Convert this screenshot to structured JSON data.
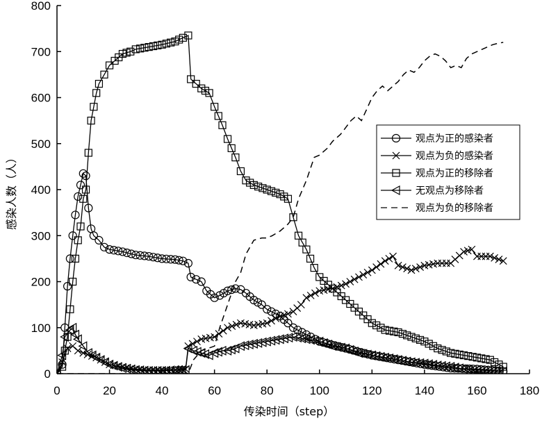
{
  "chart_data": {
    "type": "line",
    "title": "",
    "xlabel": "传染时间（step）",
    "ylabel": "感染人数（人）",
    "xlim": [
      0,
      180
    ],
    "ylim": [
      0,
      800
    ],
    "xticks": [
      "0",
      "20",
      "40",
      "60",
      "80",
      "100",
      "120",
      "140",
      "160",
      "180"
    ],
    "yticks": [
      "0",
      "100",
      "200",
      "300",
      "400",
      "500",
      "600",
      "700",
      "800"
    ],
    "grid": false,
    "legend_position": "right",
    "series": [
      {
        "name": "观点为正的感染者",
        "marker": "circle",
        "line": "solid",
        "points": [
          [
            0,
            0
          ],
          [
            2,
            20
          ],
          [
            3,
            100
          ],
          [
            4,
            190
          ],
          [
            5,
            250
          ],
          [
            6,
            300
          ],
          [
            7,
            345
          ],
          [
            8,
            385
          ],
          [
            9,
            410
          ],
          [
            10,
            435
          ],
          [
            11,
            430
          ],
          [
            12,
            360
          ],
          [
            13,
            315
          ],
          [
            14,
            300
          ],
          [
            16,
            290
          ],
          [
            18,
            275
          ],
          [
            20,
            270
          ],
          [
            25,
            265
          ],
          [
            30,
            258
          ],
          [
            35,
            255
          ],
          [
            40,
            250
          ],
          [
            45,
            248
          ],
          [
            48,
            245
          ],
          [
            50,
            240
          ],
          [
            51,
            210
          ],
          [
            53,
            205
          ],
          [
            55,
            200
          ],
          [
            57,
            180
          ],
          [
            60,
            165
          ],
          [
            62,
            170
          ],
          [
            65,
            180
          ],
          [
            68,
            185
          ],
          [
            70,
            183
          ],
          [
            72,
            175
          ],
          [
            75,
            160
          ],
          [
            78,
            150
          ],
          [
            80,
            140
          ],
          [
            85,
            125
          ],
          [
            88,
            110
          ],
          [
            90,
            100
          ],
          [
            95,
            85
          ],
          [
            100,
            70
          ],
          [
            110,
            55
          ],
          [
            120,
            40
          ],
          [
            130,
            30
          ],
          [
            140,
            20
          ],
          [
            150,
            12
          ],
          [
            160,
            10
          ],
          [
            170,
            5
          ]
        ]
      },
      {
        "name": "观点为负的感染者",
        "marker": "x",
        "line": "solid",
        "points": [
          [
            0,
            0
          ],
          [
            2,
            25
          ],
          [
            4,
            55
          ],
          [
            6,
            60
          ],
          [
            8,
            50
          ],
          [
            10,
            45
          ],
          [
            15,
            35
          ],
          [
            20,
            20
          ],
          [
            25,
            15
          ],
          [
            30,
            10
          ],
          [
            35,
            8
          ],
          [
            40,
            8
          ],
          [
            45,
            8
          ],
          [
            49,
            10
          ],
          [
            50,
            60
          ],
          [
            55,
            75
          ],
          [
            60,
            80
          ],
          [
            65,
            100
          ],
          [
            70,
            110
          ],
          [
            75,
            105
          ],
          [
            80,
            110
          ],
          [
            85,
            125
          ],
          [
            88,
            130
          ],
          [
            90,
            135
          ],
          [
            93,
            150
          ],
          [
            95,
            165
          ],
          [
            100,
            180
          ],
          [
            105,
            185
          ],
          [
            110,
            195
          ],
          [
            115,
            210
          ],
          [
            120,
            225
          ],
          [
            125,
            245
          ],
          [
            128,
            255
          ],
          [
            130,
            235
          ],
          [
            135,
            225
          ],
          [
            140,
            235
          ],
          [
            145,
            240
          ],
          [
            150,
            240
          ],
          [
            155,
            265
          ],
          [
            158,
            270
          ],
          [
            160,
            255
          ],
          [
            165,
            255
          ],
          [
            170,
            245
          ]
        ]
      },
      {
        "name": "观点为正的移除者",
        "marker": "square",
        "line": "solid",
        "points": [
          [
            0,
            0
          ],
          [
            2,
            15
          ],
          [
            3,
            50
          ],
          [
            4,
            80
          ],
          [
            5,
            140
          ],
          [
            6,
            200
          ],
          [
            7,
            250
          ],
          [
            8,
            290
          ],
          [
            9,
            320
          ],
          [
            10,
            380
          ],
          [
            11,
            400
          ],
          [
            12,
            480
          ],
          [
            13,
            550
          ],
          [
            14,
            580
          ],
          [
            15,
            610
          ],
          [
            16,
            630
          ],
          [
            18,
            650
          ],
          [
            20,
            670
          ],
          [
            22,
            680
          ],
          [
            25,
            695
          ],
          [
            28,
            700
          ],
          [
            30,
            705
          ],
          [
            35,
            710
          ],
          [
            40,
            715
          ],
          [
            45,
            722
          ],
          [
            48,
            730
          ],
          [
            50,
            735
          ],
          [
            51,
            640
          ],
          [
            53,
            630
          ],
          [
            55,
            620
          ],
          [
            58,
            610
          ],
          [
            60,
            580
          ],
          [
            63,
            540
          ],
          [
            65,
            510
          ],
          [
            68,
            470
          ],
          [
            70,
            440
          ],
          [
            72,
            420
          ],
          [
            75,
            410
          ],
          [
            80,
            400
          ],
          [
            85,
            390
          ],
          [
            88,
            380
          ],
          [
            90,
            340
          ],
          [
            92,
            300
          ],
          [
            95,
            270
          ],
          [
            98,
            230
          ],
          [
            100,
            210
          ],
          [
            105,
            185
          ],
          [
            110,
            160
          ],
          [
            115,
            135
          ],
          [
            120,
            110
          ],
          [
            125,
            95
          ],
          [
            130,
            90
          ],
          [
            135,
            80
          ],
          [
            140,
            70
          ],
          [
            145,
            55
          ],
          [
            150,
            45
          ],
          [
            155,
            40
          ],
          [
            160,
            35
          ],
          [
            165,
            30
          ],
          [
            170,
            15
          ]
        ]
      },
      {
        "name": "无观点为移除者",
        "marker": "triangle-left",
        "line": "solid",
        "points": [
          [
            0,
            0
          ],
          [
            2,
            40
          ],
          [
            3,
            80
          ],
          [
            5,
            95
          ],
          [
            6,
            100
          ],
          [
            7,
            85
          ],
          [
            8,
            75
          ],
          [
            10,
            60
          ],
          [
            12,
            45
          ],
          [
            15,
            35
          ],
          [
            20,
            20
          ],
          [
            25,
            12
          ],
          [
            30,
            8
          ],
          [
            35,
            6
          ],
          [
            40,
            6
          ],
          [
            45,
            8
          ],
          [
            49,
            8
          ],
          [
            50,
            55
          ],
          [
            52,
            50
          ],
          [
            55,
            45
          ],
          [
            58,
            40
          ],
          [
            60,
            45
          ],
          [
            63,
            50
          ],
          [
            65,
            50
          ],
          [
            68,
            55
          ],
          [
            70,
            60
          ],
          [
            75,
            65
          ],
          [
            80,
            70
          ],
          [
            85,
            75
          ],
          [
            90,
            80
          ],
          [
            95,
            75
          ],
          [
            100,
            70
          ],
          [
            105,
            60
          ],
          [
            110,
            55
          ],
          [
            115,
            45
          ],
          [
            120,
            40
          ],
          [
            125,
            35
          ],
          [
            130,
            30
          ],
          [
            135,
            25
          ],
          [
            140,
            22
          ],
          [
            145,
            18
          ],
          [
            150,
            15
          ],
          [
            155,
            10
          ],
          [
            160,
            8
          ],
          [
            170,
            5
          ]
        ]
      },
      {
        "name": "观点为负的移除者",
        "marker": "none",
        "line": "dashed",
        "points": [
          [
            0,
            0
          ],
          [
            50,
            0
          ],
          [
            52,
            30
          ],
          [
            55,
            50
          ],
          [
            60,
            60
          ],
          [
            62,
            100
          ],
          [
            65,
            150
          ],
          [
            68,
            200
          ],
          [
            70,
            220
          ],
          [
            72,
            260
          ],
          [
            75,
            290
          ],
          [
            78,
            295
          ],
          [
            80,
            295
          ],
          [
            82,
            300
          ],
          [
            85,
            310
          ],
          [
            88,
            325
          ],
          [
            90,
            340
          ],
          [
            92,
            380
          ],
          [
            95,
            420
          ],
          [
            98,
            470
          ],
          [
            100,
            475
          ],
          [
            103,
            490
          ],
          [
            105,
            505
          ],
          [
            108,
            520
          ],
          [
            110,
            535
          ],
          [
            112,
            550
          ],
          [
            114,
            560
          ],
          [
            116,
            550
          ],
          [
            118,
            575
          ],
          [
            120,
            600
          ],
          [
            122,
            615
          ],
          [
            124,
            625
          ],
          [
            126,
            615
          ],
          [
            128,
            625
          ],
          [
            130,
            635
          ],
          [
            132,
            650
          ],
          [
            134,
            660
          ],
          [
            136,
            655
          ],
          [
            138,
            665
          ],
          [
            140,
            680
          ],
          [
            142,
            690
          ],
          [
            144,
            695
          ],
          [
            146,
            690
          ],
          [
            148,
            680
          ],
          [
            150,
            665
          ],
          [
            152,
            670
          ],
          [
            154,
            665
          ],
          [
            156,
            685
          ],
          [
            158,
            695
          ],
          [
            160,
            700
          ],
          [
            162,
            705
          ],
          [
            164,
            710
          ],
          [
            166,
            715
          ],
          [
            168,
            718
          ],
          [
            170,
            720
          ]
        ]
      }
    ]
  }
}
